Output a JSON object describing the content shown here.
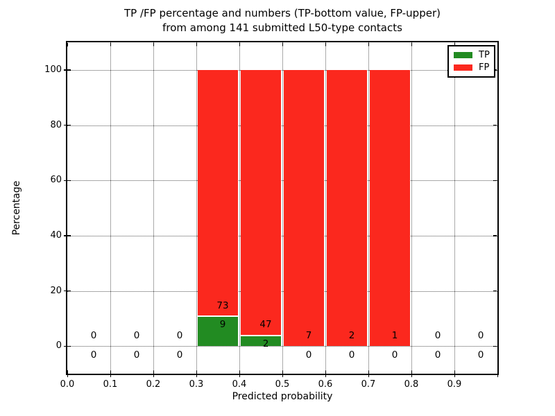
{
  "chart_data": {
    "type": "bar",
    "stacked": true,
    "normalized_per_bin_to": 100,
    "title_line1": "TP /FP percentage and numbers (TP-bottom value, FP-upper)",
    "title_line2": "from among 141 submitted L50-type contacts",
    "xlabel": "Predicted probability",
    "ylabel": "Percentage",
    "total_contacts": 141,
    "xlim": [
      0.0,
      1.0
    ],
    "ylim": [
      -10,
      110
    ],
    "grid": "dotted",
    "x_ticks": [
      {
        "value": 0.0,
        "label": "0.0"
      },
      {
        "value": 0.1,
        "label": "0.1"
      },
      {
        "value": 0.2,
        "label": "0.2"
      },
      {
        "value": 0.3,
        "label": "0.3"
      },
      {
        "value": 0.4,
        "label": "0.4"
      },
      {
        "value": 0.5,
        "label": "0.5"
      },
      {
        "value": 0.6,
        "label": "0.6"
      },
      {
        "value": 0.7,
        "label": "0.7"
      },
      {
        "value": 0.8,
        "label": "0.8"
      },
      {
        "value": 0.9,
        "label": "0.9"
      }
    ],
    "y_ticks": [
      {
        "value": 0,
        "label": "0"
      },
      {
        "value": 20,
        "label": "20"
      },
      {
        "value": 40,
        "label": "40"
      },
      {
        "value": 60,
        "label": "60"
      },
      {
        "value": 80,
        "label": "80"
      },
      {
        "value": 100,
        "label": "100"
      }
    ],
    "colors": {
      "tp": "#228b22",
      "fp": "#fb281e",
      "axis": "#000000",
      "text": "#000000",
      "background": "#ffffff"
    },
    "legend": {
      "position": "upper-right",
      "entries": [
        {
          "label": "TP",
          "series": "tp"
        },
        {
          "label": "FP",
          "series": "fp"
        }
      ]
    },
    "bins": [
      {
        "x0": 0.0,
        "x1": 0.1,
        "tp": 0,
        "fp": 0,
        "tp_pct": null,
        "fp_pct": null
      },
      {
        "x0": 0.1,
        "x1": 0.2,
        "tp": 0,
        "fp": 0,
        "tp_pct": null,
        "fp_pct": null
      },
      {
        "x0": 0.2,
        "x1": 0.3,
        "tp": 0,
        "fp": 0,
        "tp_pct": null,
        "fp_pct": null
      },
      {
        "x0": 0.3,
        "x1": 0.4,
        "tp": 9,
        "fp": 73,
        "tp_pct": 10.98,
        "fp_pct": 89.02
      },
      {
        "x0": 0.4,
        "x1": 0.5,
        "tp": 2,
        "fp": 47,
        "tp_pct": 4.08,
        "fp_pct": 95.92
      },
      {
        "x0": 0.5,
        "x1": 0.6,
        "tp": 0,
        "fp": 7,
        "tp_pct": 0,
        "fp_pct": 100
      },
      {
        "x0": 0.6,
        "x1": 0.7,
        "tp": 0,
        "fp": 2,
        "tp_pct": 0,
        "fp_pct": 100
      },
      {
        "x0": 0.7,
        "x1": 0.8,
        "tp": 0,
        "fp": 1,
        "tp_pct": 0,
        "fp_pct": 100
      },
      {
        "x0": 0.8,
        "x1": 0.9,
        "tp": 0,
        "fp": 0,
        "tp_pct": null,
        "fp_pct": null
      },
      {
        "x0": 0.9,
        "x1": 1.0,
        "tp": 0,
        "fp": 0,
        "tp_pct": null,
        "fp_pct": null
      }
    ],
    "annotations_note": "each bin shows FP count above and TP count below the top of the TP segment"
  }
}
